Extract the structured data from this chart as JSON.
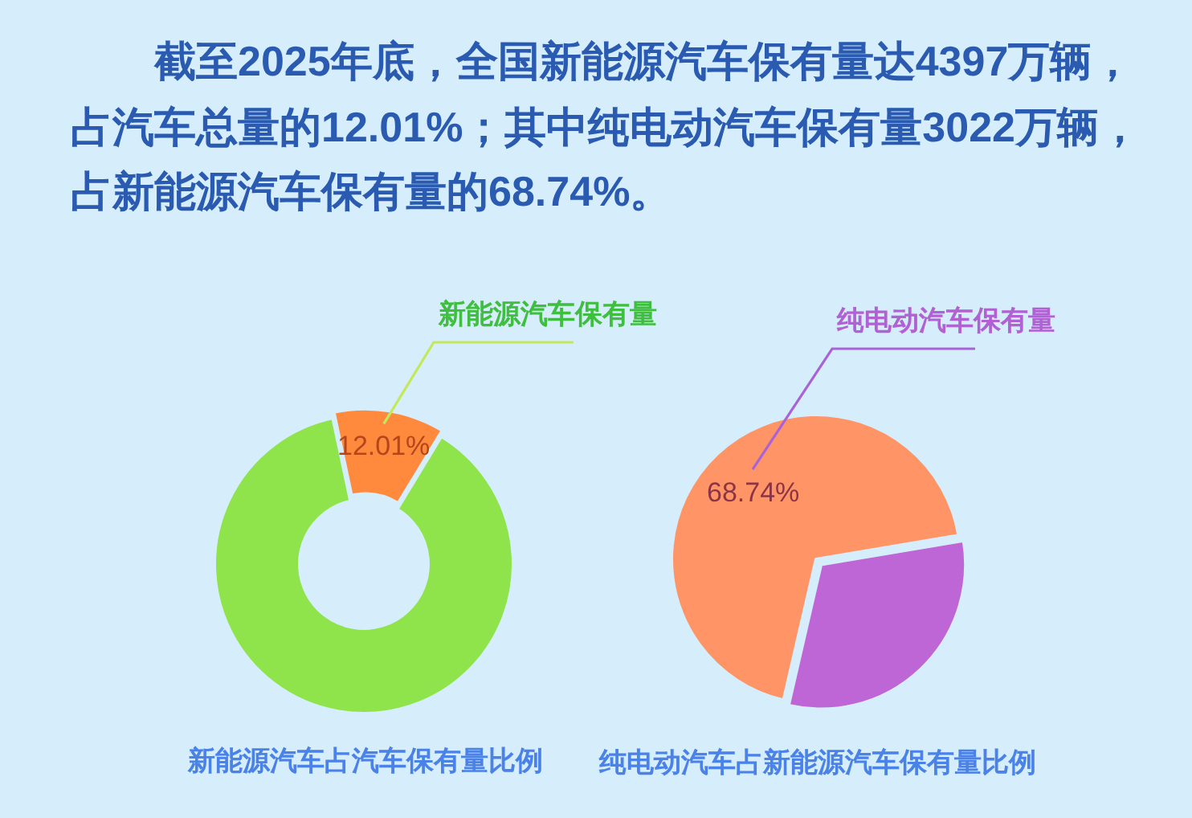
{
  "chart_data": [
    {
      "type": "other",
      "annotations": [
        "截至2025年底，全国新能源汽车保有量达4397万辆，",
        "占汽车总量的12.01%；其中纯电动汽车保有量3022万辆，",
        "占新能源汽车保有量的68.74%。"
      ]
    },
    {
      "type": "donut",
      "title": "新能源汽车占汽车保有量比例",
      "categories": [
        "新能源汽车保有量",
        null
      ],
      "values": [
        12.01,
        87.99
      ],
      "colors": [
        "#ff8a3d",
        "#8ee44a"
      ],
      "value_labels": [
        "12.01%",
        null
      ]
    },
    {
      "type": "pie",
      "title": "纯电动汽车占新能源汽车保有量比例",
      "categories": [
        "纯电动汽车保有量",
        null
      ],
      "values": [
        68.74,
        31.26
      ],
      "colors": [
        "#ff9466",
        "#bf66d6"
      ],
      "value_labels": [
        "68.74%",
        null
      ]
    }
  ]
}
